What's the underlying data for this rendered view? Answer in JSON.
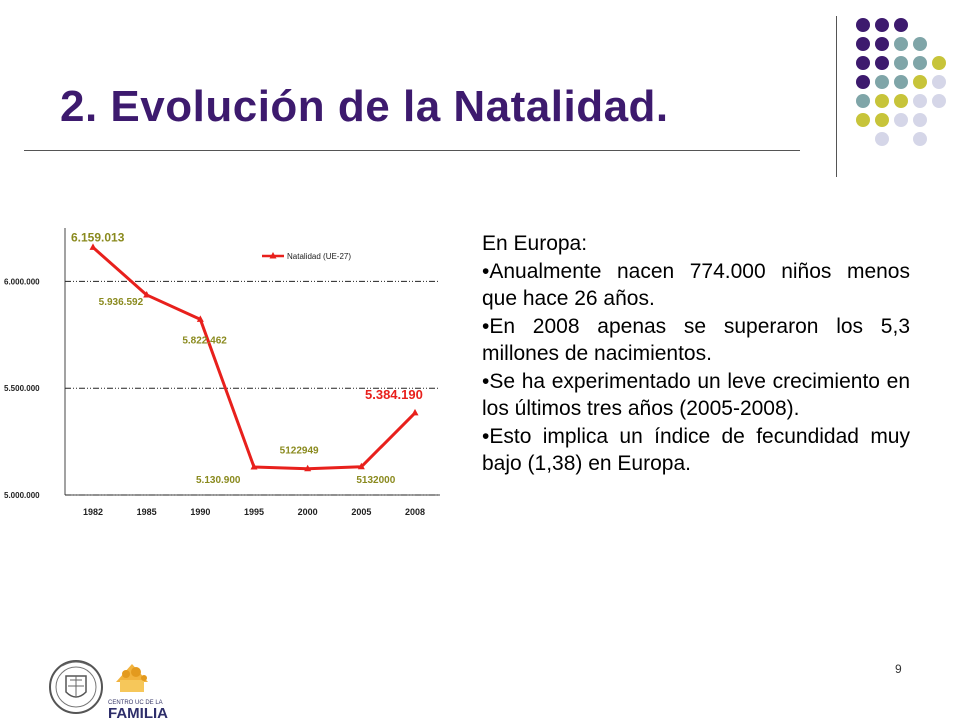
{
  "slide": {
    "title": "2. Evolución de la Natalidad.",
    "page_number": "9",
    "body": {
      "intro": "En Europa:",
      "bullets": [
        "•Anualmente nacen 774.000 niños menos que hace 26 años.",
        "•En 2008 apenas se superaron los 5,3 millones de nacimientos.",
        "•Se ha experimentado un leve crecimiento en los últimos tres años (2005-2008).",
        "•Esto implica un índice de fecundidad muy bajo (1,38) en Europa."
      ]
    },
    "logos": {
      "familia_line1": "CENTRO UC DE LA",
      "familia_line2": "FAMILIA"
    },
    "colors": {
      "title": "#3d1a6e",
      "dot_purple": "#3d1a6e",
      "dot_teal": "#7fa5a8",
      "dot_olive": "#c7c43a",
      "dot_lavender": "#d5d6e8"
    }
  },
  "chart_data": {
    "type": "line",
    "title": "",
    "xlabel": "",
    "ylabel": "",
    "categories": [
      "1982",
      "1985",
      "1990",
      "1995",
      "2000",
      "2005",
      "2008"
    ],
    "series": [
      {
        "name": "Natalidad (UE-27)",
        "color": "#e8201c",
        "values": [
          6159013,
          5936592,
          5822462,
          5130900,
          5122949,
          5132000,
          5384190
        ]
      }
    ],
    "data_labels": [
      "6.159.013",
      "5.936.592",
      "5.822.462",
      "5.130.900",
      "5122949",
      "5132000",
      "5.384.190"
    ],
    "data_label_colors": [
      "#8a8a1e",
      "#8a8a1e",
      "#8a8a1e",
      "#8a8a1e",
      "#8a8a1e",
      "#8a8a1e",
      "#e8201c"
    ],
    "y_ticks": [
      5000000,
      5500000,
      6000000
    ],
    "y_tick_labels": [
      "5.000.000",
      "5.500.000",
      "6.000.000"
    ],
    "ylim": [
      5000000,
      6250000
    ],
    "grid": true,
    "legend_position": "top-right"
  }
}
